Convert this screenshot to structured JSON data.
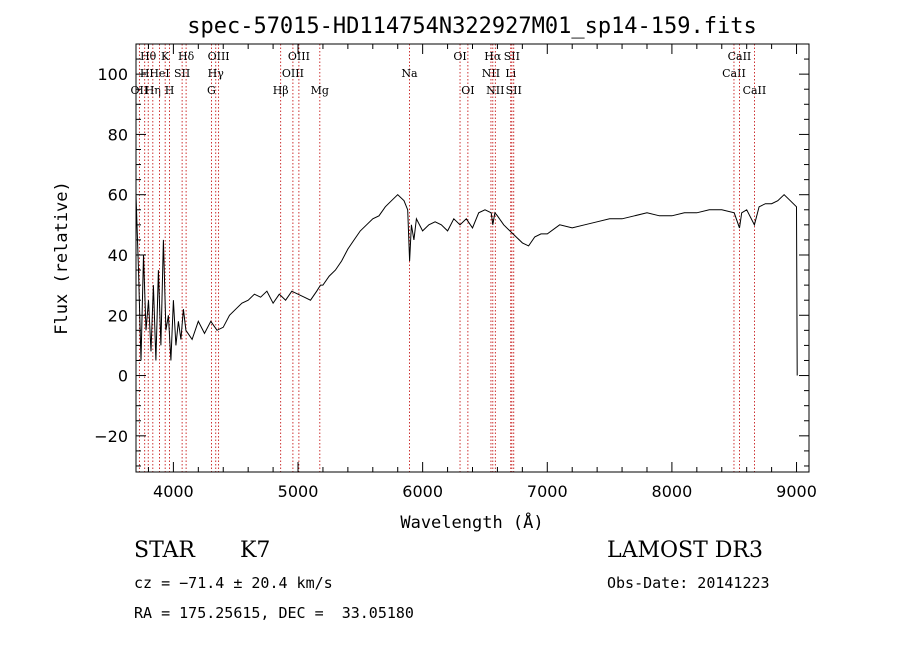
{
  "chart_data": {
    "type": "line",
    "title": "spec-57015-HD114754N322927M01_sp14-159.fits",
    "xlabel": "Wavelength (Å)",
    "ylabel": "Flux (relative)",
    "xlim": [
      3700,
      9100
    ],
    "ylim": [
      -32,
      110
    ],
    "x_ticks": [
      4000,
      5000,
      6000,
      7000,
      8000,
      9000
    ],
    "y_ticks": [
      -20,
      0,
      20,
      40,
      60,
      80,
      100
    ],
    "y_tick_labels": [
      "−20",
      "0",
      "20",
      "40",
      "60",
      "80",
      "100"
    ],
    "grid": false,
    "series": [
      {
        "x": [
          3700,
          3720,
          3740,
          3760,
          3780,
          3800,
          3820,
          3840,
          3860,
          3880,
          3900,
          3920,
          3940,
          3960,
          3980,
          4000,
          4020,
          4040,
          4060,
          4080,
          4100,
          4150,
          4200,
          4250,
          4300,
          4350,
          4400,
          4450,
          4500,
          4550,
          4600,
          4650,
          4700,
          4750,
          4800,
          4850,
          4900,
          4950,
          5000,
          5050,
          5100,
          5150,
          5180,
          5200,
          5250,
          5300,
          5350,
          5400,
          5450,
          5500,
          5550,
          5600,
          5650,
          5700,
          5750,
          5800,
          5850,
          5880,
          5895,
          5910,
          5930,
          5950,
          6000,
          6050,
          6100,
          6150,
          6200,
          6250,
          6300,
          6350,
          6400,
          6450,
          6500,
          6550,
          6563,
          6580,
          6600,
          6650,
          6700,
          6750,
          6800,
          6850,
          6900,
          6950,
          7000,
          7100,
          7200,
          7300,
          7400,
          7500,
          7600,
          7700,
          7800,
          7900,
          8000,
          8100,
          8200,
          8300,
          8400,
          8500,
          8542,
          8560,
          8600,
          8662,
          8700,
          8750,
          8800,
          8850,
          8900,
          8950,
          9000,
          9005
        ],
        "y": [
          60,
          35,
          5,
          40,
          15,
          25,
          8,
          30,
          5,
          35,
          10,
          45,
          15,
          20,
          5,
          25,
          10,
          18,
          12,
          22,
          15,
          12,
          18,
          14,
          18,
          15,
          16,
          20,
          22,
          24,
          25,
          27,
          26,
          28,
          24,
          27,
          25,
          28,
          27,
          26,
          25,
          28,
          30,
          30,
          33,
          35,
          38,
          42,
          45,
          48,
          50,
          52,
          53,
          56,
          58,
          60,
          58,
          55,
          38,
          50,
          45,
          52,
          48,
          50,
          51,
          50,
          48,
          52,
          50,
          52,
          49,
          54,
          55,
          54,
          50,
          54,
          53,
          50,
          48,
          46,
          44,
          43,
          46,
          47,
          47,
          50,
          49,
          50,
          51,
          52,
          52,
          53,
          54,
          53,
          53,
          54,
          54,
          55,
          55,
          54,
          49,
          54,
          55,
          50,
          56,
          57,
          57,
          58,
          60,
          58,
          56,
          0
        ]
      }
    ],
    "spectral_lines": [
      {
        "name": "Hθ",
        "x": 3798,
        "row": 0
      },
      {
        "name": "OII",
        "x": 3727,
        "row": 2
      },
      {
        "name": "H",
        "x": 3770,
        "row": 1
      },
      {
        "name": "Hη",
        "x": 3835,
        "row": 2
      },
      {
        "name": "HeI",
        "x": 3889,
        "row": 1
      },
      {
        "name": "K",
        "x": 3934,
        "row": 0
      },
      {
        "name": "H",
        "x": 3969,
        "row": 2
      },
      {
        "name": "SII",
        "x": 4070,
        "row": 1
      },
      {
        "name": "Hδ",
        "x": 4102,
        "row": 0
      },
      {
        "name": "G",
        "x": 4305,
        "row": 2
      },
      {
        "name": "Hγ",
        "x": 4340,
        "row": 1
      },
      {
        "name": "OIII",
        "x": 4363,
        "row": 0
      },
      {
        "name": "Hβ",
        "x": 4861,
        "row": 2
      },
      {
        "name": "OIII",
        "x": 4959,
        "row": 1
      },
      {
        "name": "OIII",
        "x": 5007,
        "row": 0
      },
      {
        "name": "Mg",
        "x": 5175,
        "row": 2
      },
      {
        "name": "Na",
        "x": 5894,
        "row": 1
      },
      {
        "name": "OI",
        "x": 6300,
        "row": 0
      },
      {
        "name": "OI",
        "x": 6363,
        "row": 2
      },
      {
        "name": "NII",
        "x": 6548,
        "row": 1
      },
      {
        "name": "Hα",
        "x": 6563,
        "row": 0
      },
      {
        "name": "NII",
        "x": 6583,
        "row": 2
      },
      {
        "name": "Li",
        "x": 6707,
        "row": 1
      },
      {
        "name": "SII",
        "x": 6716,
        "row": 0
      },
      {
        "name": "SII",
        "x": 6731,
        "row": 2
      },
      {
        "name": "CaII",
        "x": 8498,
        "row": 1
      },
      {
        "name": "CaII",
        "x": 8542,
        "row": 0
      },
      {
        "name": "CaII",
        "x": 8662,
        "row": 2
      }
    ],
    "line_color": "#000000",
    "marker_color": "#c00000"
  },
  "info": {
    "object_class": "STAR",
    "subclass": "K7",
    "survey": "LAMOST DR3",
    "redshift": "cz = −71.4 ± 20.4 km/s",
    "obs_date": "Obs-Date: 20141223",
    "coords": "RA = 175.25615, DEC =  33.05180"
  }
}
